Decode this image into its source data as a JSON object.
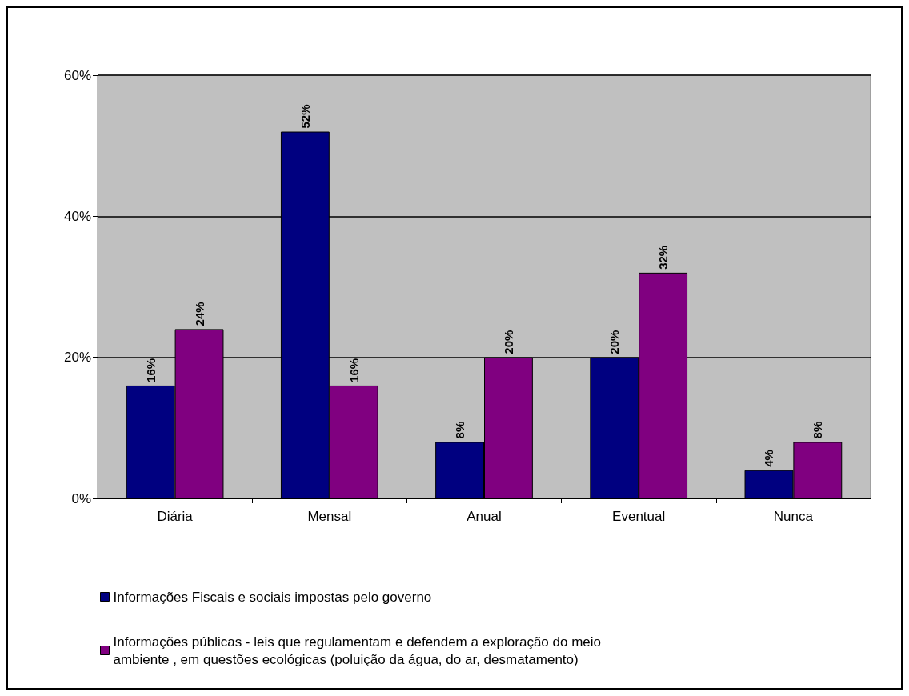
{
  "chart_data": {
    "type": "bar",
    "categories": [
      "Diária",
      "Mensal",
      "Anual",
      "Eventual",
      "Nunca"
    ],
    "series": [
      {
        "name": "Informações Fiscais e sociais impostas pelo governo",
        "color": "#000080",
        "values": [
          16,
          52,
          8,
          20,
          4
        ],
        "value_labels": [
          "16%",
          "52%",
          "8%",
          "20%",
          "4%"
        ]
      },
      {
        "name": "Informações públicas - leis que regulamentam e defendem a exploração do meio ambiente , em questões ecológicas (poluição da água, do ar, desmatamento)",
        "color": "#800080",
        "values": [
          24,
          16,
          20,
          32,
          8
        ],
        "value_labels": [
          "24%",
          "16%",
          "20%",
          "32%",
          "8%"
        ]
      }
    ],
    "ylim": [
      0,
      60
    ],
    "yticks": [
      {
        "value": 0,
        "label": "0%"
      },
      {
        "value": 20,
        "label": "20%"
      },
      {
        "value": 40,
        "label": "40%"
      },
      {
        "value": 60,
        "label": "60%"
      }
    ],
    "grid": "y",
    "legend": "bottom"
  }
}
